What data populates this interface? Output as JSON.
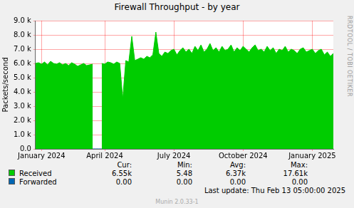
{
  "chart_data": {
    "type": "area",
    "title": "Firewall Throughput - by year",
    "y_label": "Packets/second",
    "categories": [
      null,
      null,
      "January 2024",
      null,
      null,
      null,
      null,
      null,
      null,
      null,
      null,
      null,
      null,
      null,
      null,
      null,
      null,
      null,
      null,
      null,
      null,
      null,
      null,
      "April 2024",
      null,
      null,
      null,
      null,
      null,
      null,
      null,
      null,
      null,
      null,
      null,
      null,
      null,
      null,
      null,
      null,
      null,
      null,
      null,
      null,
      null,
      null,
      "July 2024",
      null,
      null,
      null,
      null,
      null,
      null,
      null,
      null,
      null,
      null,
      null,
      null,
      null,
      null,
      null,
      null,
      null,
      null,
      null,
      null,
      null,
      null,
      "October 2024",
      null,
      null,
      null,
      null,
      null,
      null,
      null,
      null,
      null,
      null,
      null,
      null,
      null,
      null,
      null,
      null,
      null,
      null,
      null,
      null,
      null,
      null,
      "January 2025",
      null,
      null,
      null,
      null,
      null,
      null,
      null
    ],
    "series": [
      {
        "name": "Received",
        "color": "#00cc00",
        "values": [
          6000,
          6050,
          5950,
          6100,
          5900,
          6150,
          6000,
          5950,
          6050,
          5900,
          6000,
          5850,
          6050,
          5950,
          5800,
          5900,
          6000,
          5850,
          5900,
          5950,
          null,
          null,
          6000,
          5950,
          6100,
          6050,
          5950,
          6100,
          6000,
          3500,
          6200,
          6100,
          7900,
          6200,
          6300,
          6400,
          6300,
          6500,
          6400,
          6600,
          8200,
          6700,
          6500,
          6800,
          6700,
          6900,
          7000,
          6600,
          6900,
          7100,
          6800,
          7000,
          6700,
          7200,
          6900,
          7300,
          6800,
          7000,
          7400,
          6900,
          7100,
          6800,
          7200,
          6900,
          7000,
          7300,
          6800,
          7100,
          6900,
          7200,
          7000,
          6800,
          7100,
          7300,
          6900,
          7000,
          6800,
          7200,
          6900,
          7100,
          6700,
          7000,
          6900,
          7200,
          6800,
          7000,
          6900,
          6700,
          7000,
          7100,
          6800,
          6900,
          7000,
          6700,
          6900,
          7000,
          6600,
          6800,
          6500,
          6700
        ],
        "stats": [
          "6.55k",
          "5.48",
          "6.37k",
          "17.61k"
        ]
      },
      {
        "name": "Forwarded",
        "color": "#0066b3",
        "values": [
          0,
          0,
          0,
          0,
          0,
          0,
          0,
          0,
          0,
          0,
          0,
          0,
          0,
          0,
          0,
          0,
          0,
          0,
          0,
          0,
          0,
          0,
          0,
          0,
          0,
          0,
          0,
          0,
          0,
          0,
          0,
          0,
          0,
          0,
          0,
          0,
          0,
          0,
          0,
          0,
          0,
          0,
          0,
          0,
          0,
          0,
          0,
          0,
          0,
          0,
          0,
          0,
          0,
          0,
          0,
          0,
          0,
          0,
          0,
          0,
          0,
          0,
          0,
          0,
          0,
          0,
          0,
          0,
          0,
          0,
          0,
          0,
          0,
          0,
          0,
          0,
          0,
          0,
          0,
          0,
          0,
          0,
          0,
          0,
          0,
          0,
          0,
          0,
          0,
          0,
          0,
          0,
          0,
          0,
          0,
          0,
          0,
          0,
          0,
          0
        ],
        "stats": [
          "0.00",
          "0.00",
          "0.00",
          "0.00"
        ]
      }
    ],
    "stats_labels": [
      "Cur:",
      "Min:",
      "Avg:",
      "Max:"
    ],
    "ylim": [
      0,
      9000
    ],
    "yticks": [
      {
        "value": 0,
        "label": "0.0"
      },
      {
        "value": 1000,
        "label": "1.0 k"
      },
      {
        "value": 2000,
        "label": "2.0 k"
      },
      {
        "value": 3000,
        "label": "3.0 k"
      },
      {
        "value": 4000,
        "label": "4.0 k"
      },
      {
        "value": 5000,
        "label": "5.0 k"
      },
      {
        "value": 6000,
        "label": "6.0 k"
      },
      {
        "value": 7000,
        "label": "7.0 k"
      },
      {
        "value": 8000,
        "label": "8.0 k"
      },
      {
        "value": 9000,
        "label": "9.0 k"
      }
    ],
    "grid": true,
    "legend": "bottom",
    "last_update": "Last update:  Thu Feb 13 05:00:00 2025",
    "footer": "Munin 2.0.33-1",
    "side_text": "RRDTOOL / TOBI OETIKER"
  }
}
